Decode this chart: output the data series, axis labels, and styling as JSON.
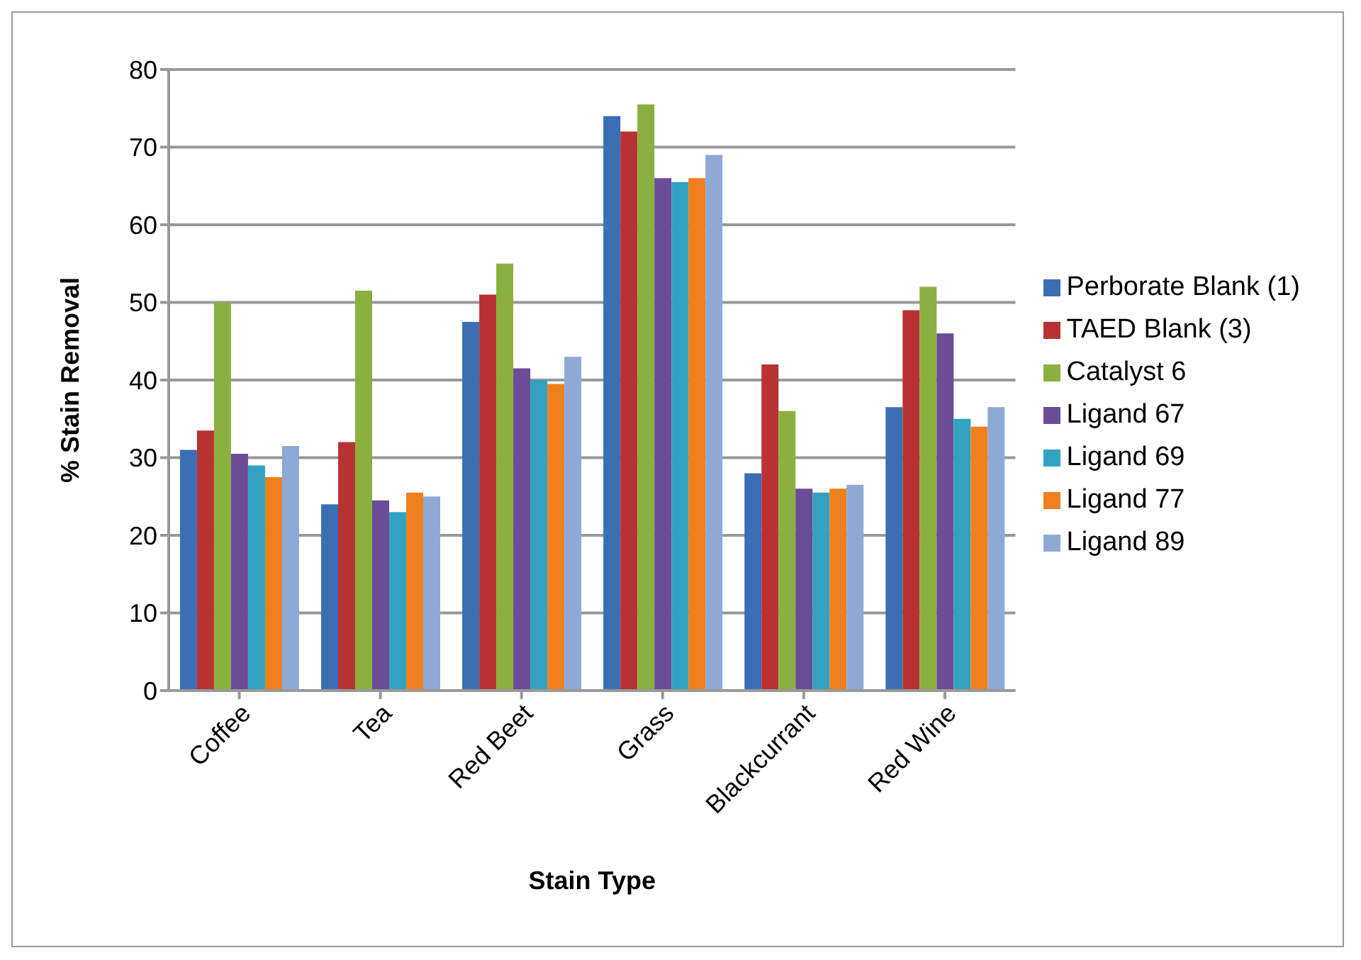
{
  "chart_data": {
    "type": "bar",
    "xlabel": "Stain Type",
    "ylabel": "% Stain Removal",
    "categories": [
      "Coffee",
      "Tea",
      "Red Beet",
      "Grass",
      "Blackcurrant",
      "Red Wine"
    ],
    "series": [
      {
        "name": "Perborate Blank (1)",
        "color": "#3a6fb5",
        "values": [
          31,
          24,
          47.5,
          74,
          28,
          36.5
        ]
      },
      {
        "name": "TAED Blank (3)",
        "color": "#b83232",
        "values": [
          33.5,
          32,
          51,
          72,
          42,
          49
        ]
      },
      {
        "name": "Catalyst 6",
        "color": "#8bb040",
        "values": [
          50,
          51.5,
          55,
          75.5,
          36,
          52
        ]
      },
      {
        "name": "Ligand 67",
        "color": "#6b4c97",
        "values": [
          30.5,
          24.5,
          41.5,
          66,
          26,
          46
        ]
      },
      {
        "name": "Ligand 69",
        "color": "#31a3c1",
        "values": [
          29,
          23,
          40,
          65.5,
          25.5,
          35
        ]
      },
      {
        "name": "Ligand 77",
        "color": "#f07f1f",
        "values": [
          27.5,
          25.5,
          39.5,
          66,
          26,
          34
        ]
      },
      {
        "name": "Ligand 89",
        "color": "#8ea9d6",
        "values": [
          31.5,
          25,
          43,
          69,
          26.5,
          36.5
        ]
      }
    ],
    "ylim": [
      0,
      80
    ],
    "yticks": [
      0,
      10,
      20,
      30,
      40,
      50,
      60,
      70,
      80
    ],
    "grid": "y",
    "legend": "right"
  }
}
